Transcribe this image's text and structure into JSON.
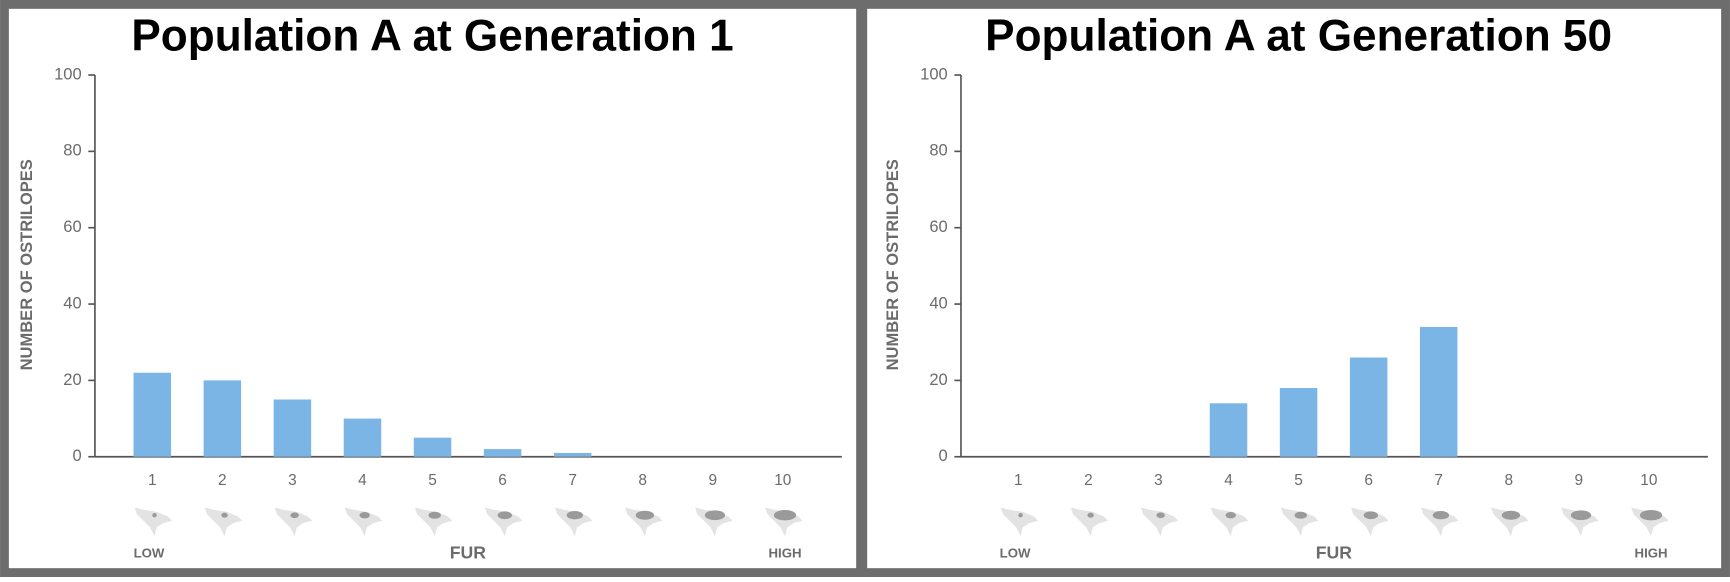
{
  "chart_data": [
    {
      "type": "bar",
      "title": "Population A at Generation 1",
      "categories": [
        "1",
        "2",
        "3",
        "4",
        "5",
        "6",
        "7",
        "8",
        "9",
        "10"
      ],
      "values": [
        22,
        20,
        15,
        10,
        5,
        2,
        1,
        0,
        0,
        0
      ],
      "color": "#7ab5e5",
      "ylim": [
        0,
        100
      ],
      "yticks": [
        0,
        20,
        40,
        60,
        80,
        100
      ],
      "y_label": "NUMBER OF OSTRILOPES",
      "x_label": "FUR",
      "x_range_labels": [
        "LOW",
        "HIGH"
      ]
    },
    {
      "type": "bar",
      "title": "Population A at Generation 50",
      "categories": [
        "1",
        "2",
        "3",
        "4",
        "5",
        "6",
        "7",
        "8",
        "9",
        "10"
      ],
      "values": [
        0,
        0,
        0,
        14,
        18,
        26,
        34,
        0,
        0,
        0
      ],
      "color": "#7ab5e5",
      "ylim": [
        0,
        100
      ],
      "yticks": [
        0,
        20,
        40,
        60,
        80,
        100
      ],
      "y_label": "NUMBER OF OSTRILOPES",
      "x_label": "FUR",
      "x_range_labels": [
        "LOW",
        "HIGH"
      ]
    }
  ]
}
